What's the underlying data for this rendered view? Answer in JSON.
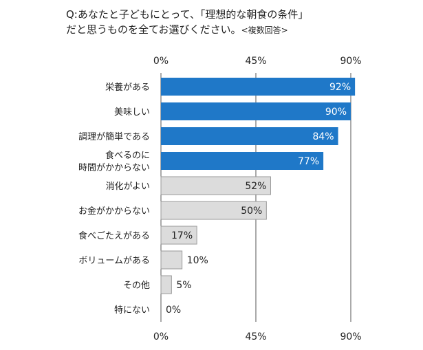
{
  "title_line1": "Q:あなたと子どもにとって、「理想的な朝食の条件」",
  "title_line2": "だと思うものを全てお選びください。",
  "title_note": "<複数回答>",
  "chart_data": {
    "type": "bar",
    "orientation": "horizontal",
    "categories": [
      [
        "栄養がある"
      ],
      [
        "美味しい"
      ],
      [
        "調理が簡単である"
      ],
      [
        "食べるのに",
        "時間がかからない"
      ],
      [
        "消化がよい"
      ],
      [
        "お金がかからない"
      ],
      [
        "食べごたえがある"
      ],
      [
        "ボリュームがある"
      ],
      [
        "その他"
      ],
      [
        "特にない"
      ]
    ],
    "values": [
      92,
      90,
      84,
      77,
      52,
      50,
      17,
      10,
      5,
      0
    ],
    "value_labels": [
      "92%",
      "90%",
      "84%",
      "77%",
      "52%",
      "50%",
      "17%",
      "10%",
      "5%",
      "0%"
    ],
    "xlim": [
      0,
      90
    ],
    "ticks": [
      0,
      45,
      90
    ],
    "tick_labels": [
      "0%",
      "45%",
      "90%"
    ],
    "highlight_count": 4,
    "colors": {
      "highlight": "#1f78c8",
      "other": "#dcdcdc",
      "other_border": "#9a9a9a",
      "axis": "#555555"
    }
  }
}
